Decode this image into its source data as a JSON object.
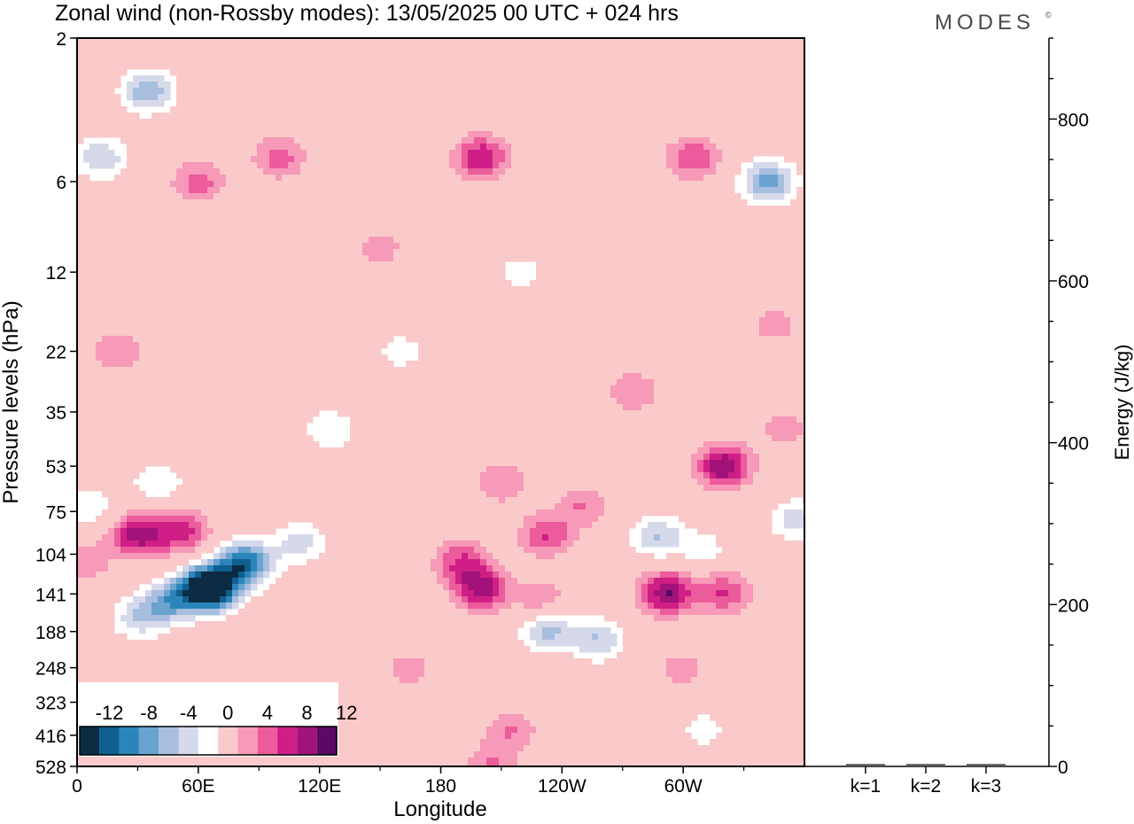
{
  "title": "Zonal wind (non-Rossby modes):  13/05/2025  00 UTC  + 024 hrs",
  "brand": "MODES",
  "brand_mark": "©",
  "chart_data": [
    {
      "type": "heatmap",
      "xlabel": "Longitude",
      "ylabel": "Pressure levels (hPa)",
      "x_ticks": [
        "0",
        "60E",
        "120E",
        "180",
        "120W",
        "60W"
      ],
      "y_ticks": [
        "2",
        "6",
        "12",
        "22",
        "35",
        "53",
        "75",
        "104",
        "141",
        "188",
        "248",
        "323",
        "416",
        "528"
      ],
      "colorbar": {
        "labels": [
          "-12",
          "-8",
          "-4",
          "0",
          "4",
          "8",
          "12"
        ],
        "levels": [
          -14,
          -12,
          -10,
          -8,
          -6,
          -4,
          -2,
          2,
          4,
          6,
          8,
          10,
          12,
          14
        ],
        "colors": [
          "#0c2c44",
          "#0f5f8f",
          "#2b85bb",
          "#6aa3cf",
          "#a7bedf",
          "#d6d9ea",
          "#ffffff",
          "#fac9c9",
          "#f799b8",
          "#ec5c9c",
          "#cf1f86",
          "#a2137a",
          "#5a0a63"
        ]
      },
      "blobs": [
        {
          "v": -8,
          "lon": 62,
          "p": 135
        },
        {
          "v": -14,
          "lon": 67,
          "p": 135
        },
        {
          "v": -13,
          "lon": 83,
          "p": 112
        },
        {
          "v": -8,
          "lon": 45,
          "p": 150
        },
        {
          "v": -5,
          "lon": 30,
          "p": 170
        },
        {
          "v": -5,
          "lon": 110,
          "p": 95
        },
        {
          "v": -6,
          "lon": 12,
          "p": 5
        },
        {
          "v": -8,
          "lon": 35,
          "p": 3
        },
        {
          "v": -4,
          "lon": 40,
          "p": 60
        },
        {
          "v": -4,
          "lon": 5,
          "p": 72
        },
        {
          "v": -4,
          "lon": 125,
          "p": 40
        },
        {
          "v": -3,
          "lon": 160,
          "p": 22
        },
        {
          "v": -7,
          "lon": 233,
          "p": 185
        },
        {
          "v": -6,
          "lon": 258,
          "p": 200
        },
        {
          "v": -6,
          "lon": 287,
          "p": 90
        },
        {
          "v": -9,
          "lon": 342,
          "p": 6
        },
        {
          "v": -5,
          "lon": 355,
          "p": 80
        },
        {
          "v": -3,
          "lon": 310,
          "p": 100
        },
        {
          "v": -3,
          "lon": 310,
          "p": 400
        },
        {
          "v": -3,
          "lon": 220,
          "p": 12
        },
        {
          "v": 9,
          "lon": 30,
          "p": 90
        },
        {
          "v": 7,
          "lon": 52,
          "p": 88
        },
        {
          "v": 4,
          "lon": 3,
          "p": 110
        },
        {
          "v": 9,
          "lon": 200,
          "p": 135
        },
        {
          "v": 6,
          "lon": 190,
          "p": 110
        },
        {
          "v": 6,
          "lon": 232,
          "p": 90
        },
        {
          "v": 4,
          "lon": 230,
          "p": 150
        },
        {
          "v": 10,
          "lon": 292,
          "p": 140
        },
        {
          "v": 6,
          "lon": 320,
          "p": 140
        },
        {
          "v": 10,
          "lon": 320,
          "p": 53
        },
        {
          "v": 4,
          "lon": 275,
          "p": 30
        },
        {
          "v": 4,
          "lon": 250,
          "p": 72
        },
        {
          "v": 8,
          "lon": 200,
          "p": 5
        },
        {
          "v": 5,
          "lon": 60,
          "p": 6
        },
        {
          "v": 5,
          "lon": 100,
          "p": 5
        },
        {
          "v": 6,
          "lon": 305,
          "p": 5
        },
        {
          "v": 4,
          "lon": 210,
          "p": 60
        },
        {
          "v": 4,
          "lon": 215,
          "p": 400
        },
        {
          "v": 4,
          "lon": 205,
          "p": 525
        },
        {
          "v": 4,
          "lon": 20,
          "p": 22
        },
        {
          "v": 3,
          "lon": 150,
          "p": 10
        },
        {
          "v": 3,
          "lon": 345,
          "p": 18
        },
        {
          "v": 3,
          "lon": 350,
          "p": 40
        },
        {
          "v": 3,
          "lon": 300,
          "p": 250
        },
        {
          "v": 3,
          "lon": 165,
          "p": 250
        }
      ]
    },
    {
      "type": "bar",
      "ylabel": "Energy (J/kg)",
      "categories": [
        "k=1",
        "k=2",
        "k=3"
      ],
      "values": [
        3,
        3,
        3
      ],
      "ylim": [
        0,
        900
      ],
      "y_ticks": [
        0,
        200,
        400,
        600,
        800
      ]
    }
  ]
}
